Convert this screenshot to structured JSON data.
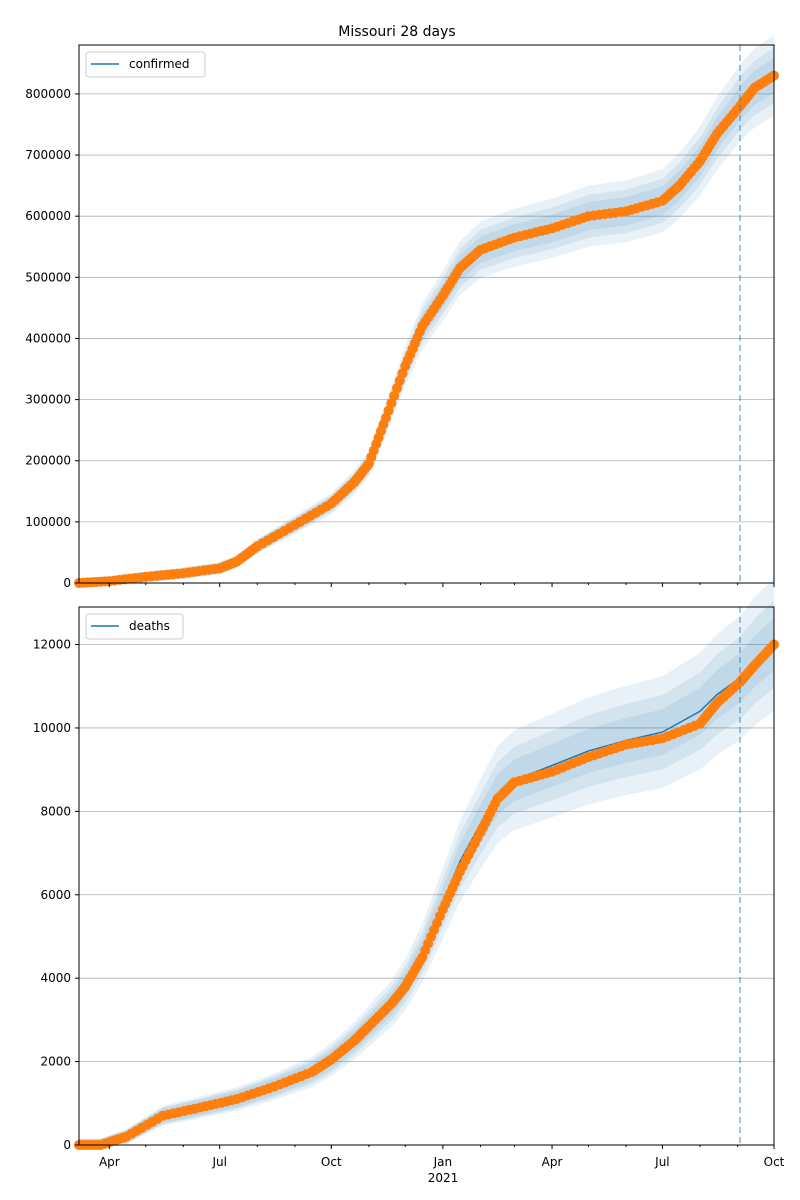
{
  "title": "Missouri 28 days",
  "x_axis": {
    "ticks": [
      "Apr",
      "Jul",
      "Oct",
      "Jan",
      "Apr",
      "Jul",
      "Oct"
    ],
    "year_label": "2021"
  },
  "colors": {
    "model_line": "#1f77b4",
    "observed_points": "#ff7f0e",
    "band": "#1f77b4",
    "forecast_line": "#1f77b4",
    "grid": "#b0b0b0"
  },
  "chart_data": [
    {
      "type": "line",
      "panel": "top",
      "title": "Missouri 28 days",
      "legend": [
        {
          "name": "confirmed",
          "placement": "top-left"
        }
      ],
      "x_range": [
        "2020-03-07",
        "2021-10-01"
      ],
      "forecast_start": "2021-09-03",
      "ylim": [
        0,
        880000
      ],
      "yticks": [
        0,
        100000,
        200000,
        300000,
        400000,
        500000,
        600000,
        700000,
        800000
      ],
      "grid": "y",
      "series": [
        {
          "name": "confirmed",
          "x": [
            "2020-03-07",
            "2020-04-01",
            "2020-05-01",
            "2020-06-01",
            "2020-07-01",
            "2020-07-15",
            "2020-08-01",
            "2020-09-01",
            "2020-10-01",
            "2020-10-20",
            "2020-11-01",
            "2020-11-15",
            "2020-12-01",
            "2020-12-15",
            "2021-01-01",
            "2021-01-15",
            "2021-02-01",
            "2021-03-01",
            "2021-04-01",
            "2021-05-01",
            "2021-06-01",
            "2021-07-01",
            "2021-07-15",
            "2021-08-01",
            "2021-08-15",
            "2021-09-03",
            "2021-09-15",
            "2021-10-01"
          ],
          "y": [
            0,
            3000,
            10000,
            16000,
            24000,
            35000,
            60000,
            95000,
            130000,
            165000,
            195000,
            270000,
            355000,
            420000,
            470000,
            515000,
            545000,
            565000,
            580000,
            600000,
            608000,
            625000,
            650000,
            690000,
            735000,
            785000,
            810000,
            830000
          ]
        }
      ],
      "observed": {
        "x": [
          "2020-03-07",
          "2020-04-01",
          "2020-05-01",
          "2020-06-01",
          "2020-07-01",
          "2020-07-15",
          "2020-08-01",
          "2020-09-01",
          "2020-10-01",
          "2020-10-20",
          "2020-11-01",
          "2020-11-15",
          "2020-12-01",
          "2020-12-15",
          "2021-01-01",
          "2021-01-15",
          "2021-02-01",
          "2021-03-01",
          "2021-04-01",
          "2021-05-01",
          "2021-06-01",
          "2021-07-01",
          "2021-07-15",
          "2021-08-01",
          "2021-08-15",
          "2021-09-03",
          "2021-09-15",
          "2021-10-01"
        ],
        "y": [
          0,
          3000,
          10000,
          16000,
          24000,
          35000,
          60000,
          95000,
          130000,
          165000,
          195000,
          270000,
          355000,
          420000,
          470000,
          515000,
          545000,
          565000,
          580000,
          600000,
          608000,
          625000,
          650000,
          690000,
          735000,
          780000,
          810000,
          830000
        ]
      }
    },
    {
      "type": "line",
      "panel": "bottom",
      "legend": [
        {
          "name": "deaths",
          "placement": "top-left"
        }
      ],
      "x_range": [
        "2020-03-07",
        "2021-10-01"
      ],
      "forecast_start": "2021-09-03",
      "ylim": [
        0,
        12900
      ],
      "yticks": [
        0,
        2000,
        4000,
        6000,
        8000,
        10000,
        12000
      ],
      "grid": "y",
      "series": [
        {
          "name": "deaths",
          "x": [
            "2020-03-07",
            "2020-03-25",
            "2020-04-15",
            "2020-05-15",
            "2020-06-15",
            "2020-07-15",
            "2020-08-15",
            "2020-09-15",
            "2020-10-01",
            "2020-10-20",
            "2020-11-01",
            "2020-11-20",
            "2020-12-01",
            "2020-12-15",
            "2021-01-01",
            "2021-01-15",
            "2021-02-01",
            "2021-02-15",
            "2021-03-01",
            "2021-04-01",
            "2021-05-01",
            "2021-06-01",
            "2021-07-01",
            "2021-08-01",
            "2021-08-15",
            "2021-09-03",
            "2021-09-15",
            "2021-10-01"
          ],
          "y": [
            0,
            0,
            200,
            700,
            900,
            1100,
            1400,
            1750,
            2050,
            2500,
            2850,
            3400,
            3850,
            4600,
            5800,
            6800,
            7700,
            8400,
            8750,
            9100,
            9450,
            9700,
            9900,
            10400,
            10800,
            11200,
            11600,
            12000
          ]
        }
      ],
      "observed": {
        "x": [
          "2020-03-07",
          "2020-03-25",
          "2020-04-15",
          "2020-05-15",
          "2020-06-15",
          "2020-07-15",
          "2020-08-15",
          "2020-09-15",
          "2020-10-01",
          "2020-10-20",
          "2020-11-01",
          "2020-11-20",
          "2020-12-01",
          "2020-12-15",
          "2021-01-01",
          "2021-01-15",
          "2021-02-01",
          "2021-02-15",
          "2021-03-01",
          "2021-04-01",
          "2021-05-01",
          "2021-06-01",
          "2021-07-01",
          "2021-08-01",
          "2021-08-15",
          "2021-09-03",
          "2021-09-15",
          "2021-10-01"
        ],
        "y": [
          0,
          0,
          200,
          700,
          900,
          1100,
          1400,
          1750,
          2050,
          2500,
          2850,
          3400,
          3800,
          4500,
          5650,
          6550,
          7500,
          8300,
          8700,
          8950,
          9300,
          9600,
          9750,
          10100,
          10600,
          11100,
          11500,
          12000
        ]
      }
    }
  ]
}
